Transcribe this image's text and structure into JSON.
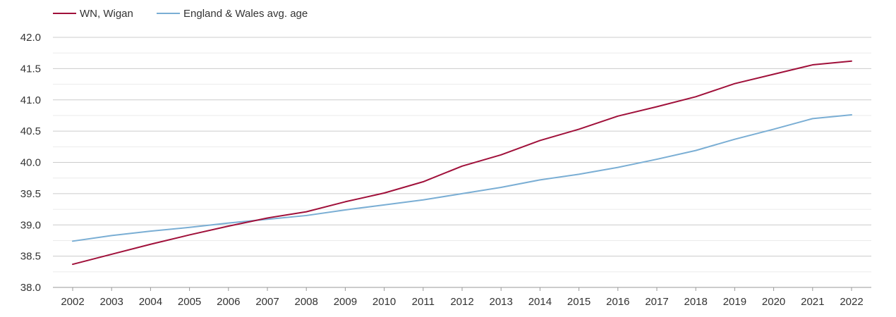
{
  "chart_data": {
    "type": "line",
    "title": "",
    "xlabel": "",
    "ylabel": "",
    "x": [
      2002,
      2003,
      2004,
      2005,
      2006,
      2007,
      2008,
      2009,
      2010,
      2011,
      2012,
      2013,
      2014,
      2015,
      2016,
      2017,
      2018,
      2019,
      2020,
      2021,
      2022
    ],
    "ylim": [
      38.0,
      42.0
    ],
    "yticks": [
      "38.0",
      "38.5",
      "39.0",
      "39.5",
      "40.0",
      "40.5",
      "41.0",
      "41.5",
      "42.0"
    ],
    "grid": true,
    "legend_position": "top-left",
    "series": [
      {
        "name": "WN, Wigan",
        "color": "#a0103a",
        "values": [
          38.37,
          38.53,
          38.69,
          38.84,
          38.98,
          39.11,
          39.21,
          39.37,
          39.51,
          39.69,
          39.94,
          40.12,
          40.35,
          40.53,
          40.74,
          40.89,
          41.05,
          41.26,
          41.41,
          41.56,
          41.62
        ]
      },
      {
        "name": "England & Wales avg. age",
        "color": "#7aaed4",
        "values": [
          38.74,
          38.83,
          38.9,
          38.96,
          39.03,
          39.09,
          39.15,
          39.24,
          39.32,
          39.4,
          39.5,
          39.6,
          39.72,
          39.81,
          39.92,
          40.05,
          40.19,
          40.37,
          40.53,
          40.7,
          40.76
        ]
      }
    ]
  }
}
